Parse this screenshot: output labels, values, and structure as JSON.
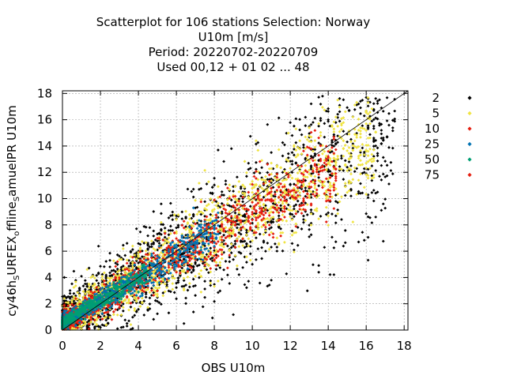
{
  "chart_data": {
    "type": "scatter",
    "title_lines": [
      "Scatterplot for  106 stations Selection: Norway",
      "U10m [m/s]",
      "Period: 20220702-20220709",
      "Used  00,12  + 01 02 ... 48"
    ],
    "xlabel": "OBS U10m",
    "ylabel": "cy46h_SURFEX_0ffline_SamuelPR U10m",
    "ylabel_parts": {
      "a": "cy46h",
      "a_sub": "S",
      "b": "URFEX",
      "b_sub": "o",
      "c": "ffline",
      "c_sub": "S",
      "d": "amuelPR U10m"
    },
    "xlim": [
      0,
      18.2
    ],
    "ylim": [
      0,
      18.2
    ],
    "x_ticks": [
      0,
      2,
      4,
      6,
      8,
      10,
      12,
      14,
      16,
      18
    ],
    "y_ticks": [
      0,
      2,
      4,
      6,
      8,
      10,
      12,
      14,
      16,
      18
    ],
    "x_tick_labels": [
      "0",
      "2",
      "4",
      "6",
      "8",
      "10",
      "12",
      "14",
      "16",
      "18"
    ],
    "y_tick_labels": [
      "0",
      "2",
      "4",
      "6",
      "8",
      "10",
      "12",
      "14",
      "16",
      "18"
    ],
    "grid": true,
    "reference_line": "y=x",
    "legend_position": "right",
    "series": [
      {
        "name": "2",
        "color": "#000000"
      },
      {
        "name": "5",
        "color": "#f0e442"
      },
      {
        "name": "10",
        "color": "#e51e10"
      },
      {
        "name": "25",
        "color": "#0072b2"
      },
      {
        "name": "50",
        "color": "#009e73"
      },
      {
        "name": "75",
        "color": "#e51e10"
      }
    ]
  }
}
